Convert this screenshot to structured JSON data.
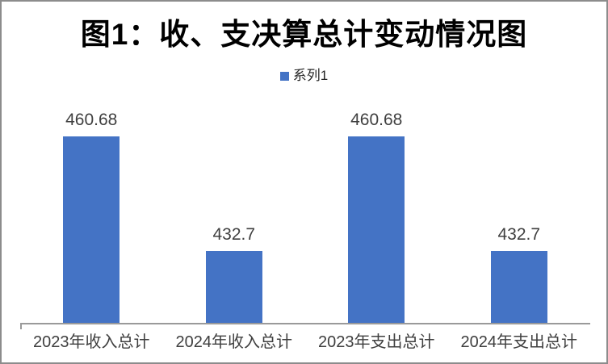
{
  "chart_data": {
    "type": "bar",
    "title": "图1：收、支决算总计变动情况图",
    "categories": [
      "2023年收入总计",
      "2024年收入总计",
      "2023年支出总计",
      "2024年支出总计"
    ],
    "series": [
      {
        "name": "系列1",
        "values": [
          460.68,
          432.7,
          460.68,
          432.7
        ]
      }
    ],
    "data_labels": [
      "460.68",
      "432.7",
      "460.68",
      "432.7"
    ],
    "xlabel": "",
    "ylabel": "",
    "ylim": [
      415,
      470
    ],
    "grid": false,
    "value_axis_visible": false,
    "legend_position": "top-center",
    "legend_marker": "square-icon",
    "colors": {
      "bar": "#4473C5",
      "axis_line": "#9A9A9A",
      "chart_border": "#8C8C8C",
      "label_text": "#3F3F3F",
      "title_text": "#000000",
      "background": "#FFFFFF"
    }
  }
}
